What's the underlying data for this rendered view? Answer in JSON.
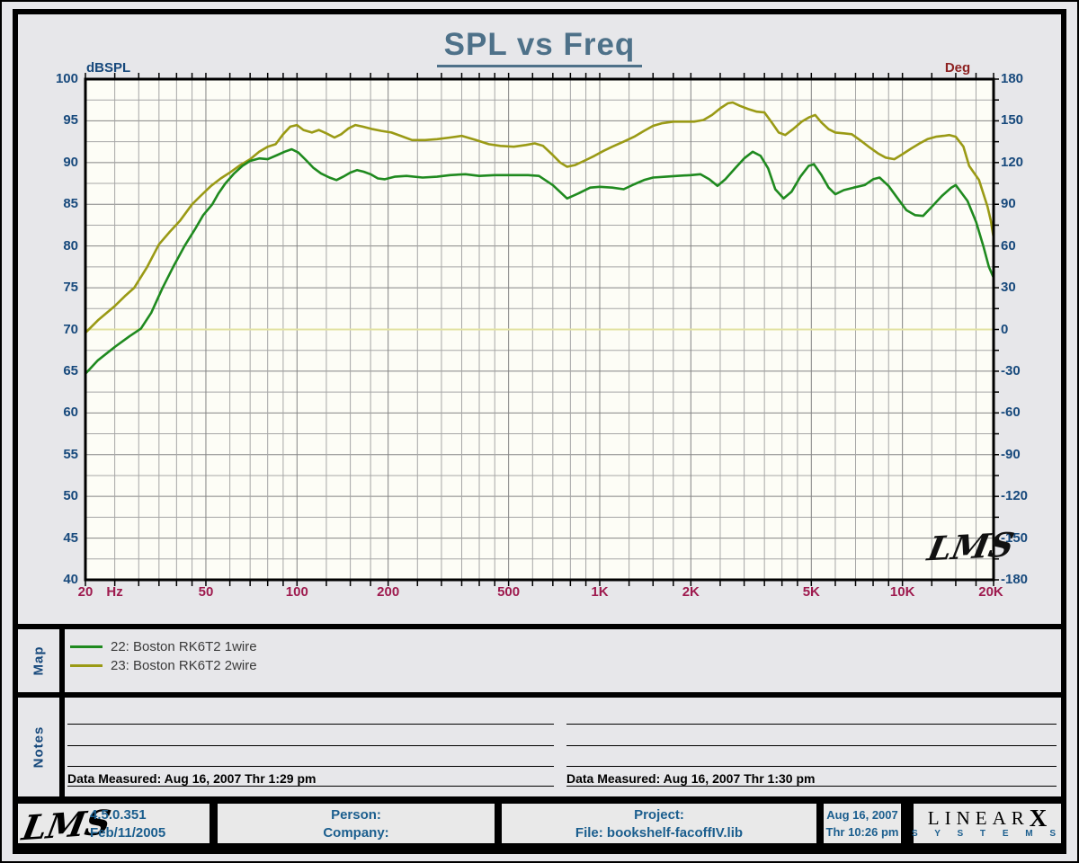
{
  "title": "SPL vs Freq",
  "signature": "LMS",
  "axes": {
    "left_unit": "dBSPL",
    "right_unit": "Deg",
    "left_ticks": [
      "100",
      "95",
      "90",
      "85",
      "80",
      "75",
      "70",
      "65",
      "60",
      "55",
      "50",
      "45",
      "40"
    ],
    "right_ticks": [
      "180",
      "150",
      "120",
      "90",
      "60",
      "30",
      "0",
      "-30",
      "-60",
      "-90",
      "-120",
      "-150",
      "-180"
    ],
    "bottom_ticks": [
      {
        "label": "20",
        "hz": 20
      },
      {
        "label": "Hz",
        "hz": 25
      },
      {
        "label": "50",
        "hz": 50
      },
      {
        "label": "100",
        "hz": 100
      },
      {
        "label": "200",
        "hz": 200
      },
      {
        "label": "500",
        "hz": 500
      },
      {
        "label": "1K",
        "hz": 1000
      },
      {
        "label": "2K",
        "hz": 2000
      },
      {
        "label": "5K",
        "hz": 5000
      },
      {
        "label": "10K",
        "hz": 10000
      },
      {
        "label": "20K",
        "hz": 19600
      }
    ]
  },
  "chart_data": {
    "type": "line",
    "title": "SPL vs Freq",
    "x_axis": {
      "scale": "log",
      "unit": "Hz",
      "min": 20,
      "max": 20000,
      "grid": true
    },
    "y_axis_left": {
      "unit": "dBSPL",
      "min": 40,
      "max": 100,
      "tick_step": 5,
      "minor_step": 2.5
    },
    "y_axis_right": {
      "unit": "Deg",
      "min": -180,
      "max": 180,
      "tick_step": 30
    },
    "phase_reference_line_deg": 0,
    "series": [
      {
        "name": "22: Boston RK6T2 1wire",
        "color": "#1f8a1f",
        "points": [
          [
            20,
            64.7
          ],
          [
            22,
            66.3
          ],
          [
            25,
            67.9
          ],
          [
            28,
            69.2
          ],
          [
            30.5,
            70.1
          ],
          [
            33,
            72
          ],
          [
            36,
            75
          ],
          [
            39,
            77.5
          ],
          [
            42.5,
            80
          ],
          [
            46,
            82
          ],
          [
            49,
            83.7
          ],
          [
            52.5,
            85
          ],
          [
            55,
            86.3
          ],
          [
            58,
            87.5
          ],
          [
            62,
            88.7
          ],
          [
            66,
            89.6
          ],
          [
            70,
            90.2
          ],
          [
            75,
            90.5
          ],
          [
            80,
            90.4
          ],
          [
            86,
            90.9
          ],
          [
            91,
            91.3
          ],
          [
            96,
            91.6
          ],
          [
            101,
            91.2
          ],
          [
            107,
            90.3
          ],
          [
            113,
            89.4
          ],
          [
            120,
            88.7
          ],
          [
            128,
            88.2
          ],
          [
            135,
            87.9
          ],
          [
            142,
            88.3
          ],
          [
            150,
            88.8
          ],
          [
            158,
            89.1
          ],
          [
            166,
            88.9
          ],
          [
            175,
            88.6
          ],
          [
            185,
            88.1
          ],
          [
            195,
            88
          ],
          [
            210,
            88.3
          ],
          [
            230,
            88.4
          ],
          [
            260,
            88.2
          ],
          [
            290,
            88.3
          ],
          [
            320,
            88.5
          ],
          [
            360,
            88.6
          ],
          [
            400,
            88.4
          ],
          [
            450,
            88.5
          ],
          [
            520,
            88.5
          ],
          [
            580,
            88.5
          ],
          [
            630,
            88.4
          ],
          [
            700,
            87.3
          ],
          [
            780,
            85.7
          ],
          [
            850,
            86.3
          ],
          [
            930,
            87
          ],
          [
            1000,
            87.1
          ],
          [
            1100,
            87
          ],
          [
            1200,
            86.8
          ],
          [
            1300,
            87.4
          ],
          [
            1400,
            87.9
          ],
          [
            1500,
            88.2
          ],
          [
            1650,
            88.3
          ],
          [
            1800,
            88.4
          ],
          [
            2000,
            88.5
          ],
          [
            2150,
            88.6
          ],
          [
            2300,
            88
          ],
          [
            2450,
            87.2
          ],
          [
            2600,
            88
          ],
          [
            2800,
            89.3
          ],
          [
            3000,
            90.5
          ],
          [
            3200,
            91.3
          ],
          [
            3400,
            90.8
          ],
          [
            3600,
            89.3
          ],
          [
            3800,
            86.8
          ],
          [
            4050,
            85.7
          ],
          [
            4300,
            86.5
          ],
          [
            4600,
            88.3
          ],
          [
            4900,
            89.6
          ],
          [
            5100,
            89.8
          ],
          [
            5400,
            88.5
          ],
          [
            5700,
            87
          ],
          [
            6000,
            86.2
          ],
          [
            6400,
            86.7
          ],
          [
            6900,
            87
          ],
          [
            7500,
            87.3
          ],
          [
            8000,
            88
          ],
          [
            8400,
            88.2
          ],
          [
            9000,
            87.2
          ],
          [
            9600,
            85.8
          ],
          [
            10300,
            84.3
          ],
          [
            11000,
            83.7
          ],
          [
            11700,
            83.6
          ],
          [
            12500,
            84.7
          ],
          [
            13500,
            86
          ],
          [
            14500,
            87
          ],
          [
            15000,
            87.3
          ],
          [
            16400,
            85.4
          ],
          [
            17500,
            82.9
          ],
          [
            18500,
            80
          ],
          [
            19300,
            77.5
          ],
          [
            20000,
            76.2
          ]
        ]
      },
      {
        "name": "23: Boston RK6T2 2wire",
        "color": "#9a9a15",
        "points": [
          [
            20,
            69.6
          ],
          [
            22,
            71.1
          ],
          [
            25,
            72.8
          ],
          [
            27,
            74
          ],
          [
            29,
            75
          ],
          [
            32,
            77.5
          ],
          [
            35,
            80.2
          ],
          [
            38,
            81.7
          ],
          [
            41,
            83
          ],
          [
            45,
            85
          ],
          [
            48,
            86
          ],
          [
            52,
            87.2
          ],
          [
            56,
            88.1
          ],
          [
            60,
            88.8
          ],
          [
            65,
            89.7
          ],
          [
            70,
            90.4
          ],
          [
            75,
            91.3
          ],
          [
            80,
            91.9
          ],
          [
            85,
            92.2
          ],
          [
            90,
            93.4
          ],
          [
            95,
            94.3
          ],
          [
            100,
            94.5
          ],
          [
            105,
            93.9
          ],
          [
            112,
            93.6
          ],
          [
            118,
            93.9
          ],
          [
            125,
            93.5
          ],
          [
            133,
            93
          ],
          [
            140,
            93.4
          ],
          [
            148,
            94.1
          ],
          [
            156,
            94.5
          ],
          [
            165,
            94.3
          ],
          [
            178,
            94
          ],
          [
            190,
            93.8
          ],
          [
            205,
            93.6
          ],
          [
            220,
            93.2
          ],
          [
            240,
            92.7
          ],
          [
            265,
            92.7
          ],
          [
            290,
            92.8
          ],
          [
            320,
            93
          ],
          [
            350,
            93.2
          ],
          [
            390,
            92.7
          ],
          [
            430,
            92.2
          ],
          [
            470,
            92
          ],
          [
            520,
            91.9
          ],
          [
            570,
            92.1
          ],
          [
            610,
            92.3
          ],
          [
            650,
            92
          ],
          [
            700,
            90.9
          ],
          [
            740,
            90
          ],
          [
            780,
            89.5
          ],
          [
            830,
            89.7
          ],
          [
            900,
            90.3
          ],
          [
            960,
            90.8
          ],
          [
            1030,
            91.4
          ],
          [
            1100,
            91.9
          ],
          [
            1200,
            92.5
          ],
          [
            1300,
            93.1
          ],
          [
            1400,
            93.8
          ],
          [
            1500,
            94.4
          ],
          [
            1600,
            94.7
          ],
          [
            1750,
            94.9
          ],
          [
            1900,
            94.9
          ],
          [
            2050,
            94.9
          ],
          [
            2200,
            95.1
          ],
          [
            2350,
            95.7
          ],
          [
            2500,
            96.5
          ],
          [
            2650,
            97.1
          ],
          [
            2750,
            97.2
          ],
          [
            2900,
            96.8
          ],
          [
            3100,
            96.4
          ],
          [
            3300,
            96.1
          ],
          [
            3500,
            96
          ],
          [
            3700,
            94.8
          ],
          [
            3900,
            93.6
          ],
          [
            4100,
            93.3
          ],
          [
            4350,
            94
          ],
          [
            4650,
            94.9
          ],
          [
            4900,
            95.4
          ],
          [
            5150,
            95.7
          ],
          [
            5400,
            94.8
          ],
          [
            5700,
            94
          ],
          [
            6000,
            93.6
          ],
          [
            6400,
            93.5
          ],
          [
            6800,
            93.4
          ],
          [
            7300,
            92.6
          ],
          [
            7800,
            91.8
          ],
          [
            8300,
            91.1
          ],
          [
            8800,
            90.6
          ],
          [
            9400,
            90.4
          ],
          [
            10000,
            91
          ],
          [
            10700,
            91.7
          ],
          [
            11400,
            92.3
          ],
          [
            12100,
            92.8
          ],
          [
            12900,
            93.1
          ],
          [
            13700,
            93.2
          ],
          [
            14300,
            93.3
          ],
          [
            15000,
            93.1
          ],
          [
            15900,
            91.9
          ],
          [
            16600,
            89.6
          ],
          [
            17900,
            87.9
          ],
          [
            19100,
            84.7
          ],
          [
            19600,
            83
          ],
          [
            20000,
            81
          ]
        ]
      }
    ]
  },
  "map": {
    "label": "Map",
    "legend": [
      {
        "label": "22: Boston RK6T2 1wire",
        "color": "#1f8a1f"
      },
      {
        "label": "23: Boston RK6T2 2wire",
        "color": "#9a9a15"
      }
    ]
  },
  "notes": {
    "label": "Notes",
    "left_caption": "Data Measured: Aug 16, 2007  Thr  1:29 pm",
    "right_caption": "Data Measured: Aug 16, 2007  Thr  1:30 pm"
  },
  "footer": {
    "logo": "LMS",
    "version": "4.5.0.351",
    "version_date": "Feb/11/2005",
    "person_label": "Person:",
    "company_label": "Company:",
    "project_label": "Project:",
    "file_label": "File: bookshelf-facoffIV.lib",
    "date": "Aug 16, 2007",
    "time": "Thr 10:26 pm",
    "brand_line1": "LINEAR",
    "brand_x": "X",
    "brand_line2": "S Y S T E M S"
  },
  "colors": {
    "page_bg": "#e7e7ea",
    "plot_bg": "#fdfdf6",
    "grid_major": "#848484",
    "grid_minor": "#a6a6a6",
    "title_blue": "#4e7189",
    "axis_blue": "#17497c",
    "freq_red": "#9e1a4e",
    "deg_red": "#8e2222",
    "footer_blue": "#1b5e8e",
    "legend_text": "#3a3a3a",
    "phase_line": "#e2e2a2"
  }
}
